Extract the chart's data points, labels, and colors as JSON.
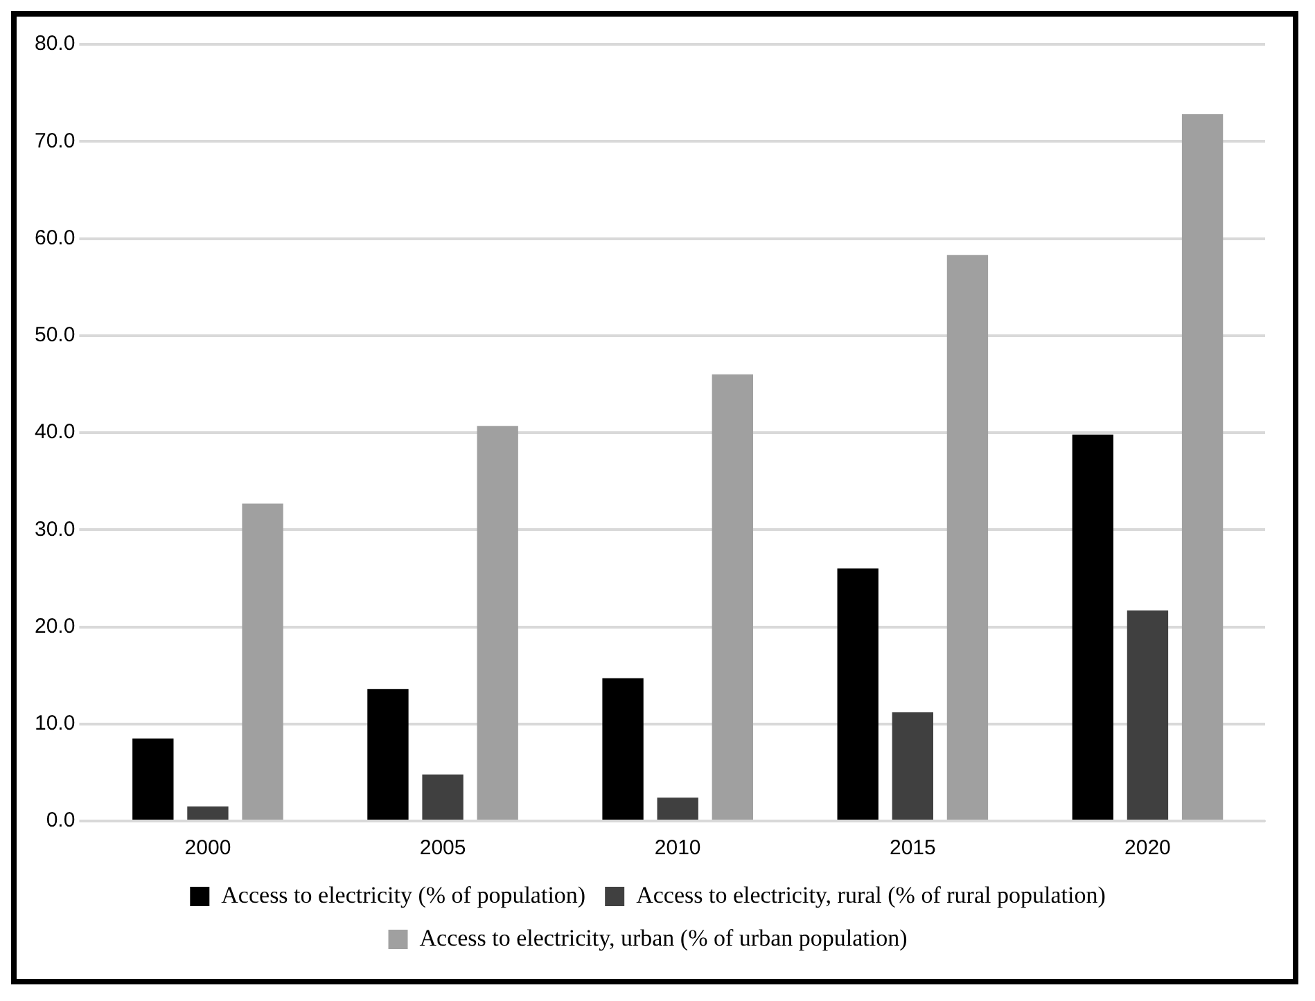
{
  "chart_data": {
    "type": "bar",
    "categories": [
      "2000",
      "2005",
      "2010",
      "2015",
      "2020"
    ],
    "series": [
      {
        "name": "Access to electricity (% of population)",
        "color": "#000000",
        "values": [
          8.5,
          13.6,
          14.7,
          26.0,
          39.8
        ]
      },
      {
        "name": "Access to electricity, rural (% of rural population)",
        "color": "#404040",
        "values": [
          1.5,
          4.8,
          2.4,
          11.2,
          21.7
        ]
      },
      {
        "name": "Access to electricity, urban (% of urban population)",
        "color": "#a0a0a0",
        "values": [
          32.7,
          40.7,
          46.0,
          58.3,
          72.8
        ]
      }
    ],
    "ylim": [
      0,
      80
    ],
    "yticks": [
      {
        "value": 0,
        "label": "0.0"
      },
      {
        "value": 10,
        "label": "10.0"
      },
      {
        "value": 20,
        "label": "20.0"
      },
      {
        "value": 30,
        "label": "30.0"
      },
      {
        "value": 40,
        "label": "40.0"
      },
      {
        "value": 50,
        "label": "50.0"
      },
      {
        "value": 60,
        "label": "60.0"
      },
      {
        "value": 70,
        "label": "70.0"
      },
      {
        "value": 80,
        "label": "80.0"
      }
    ],
    "grid": "y",
    "legend": "bottom"
  }
}
